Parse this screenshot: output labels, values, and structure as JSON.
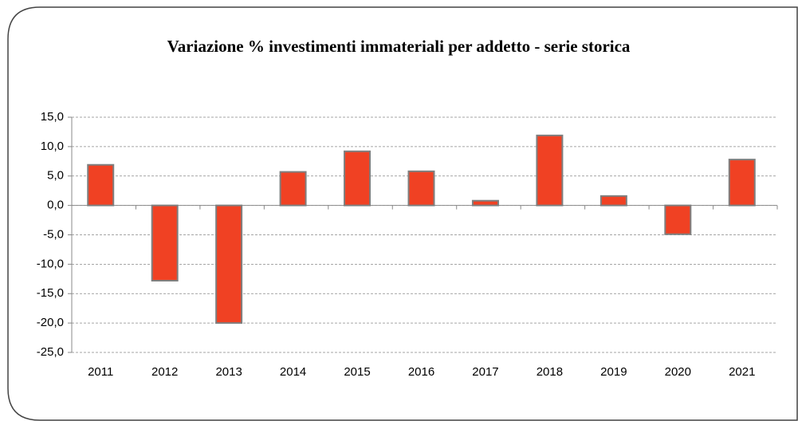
{
  "chart_data": {
    "type": "bar",
    "title": "Variazione % investimenti immateriali per addetto - serie storica",
    "categories": [
      "2011",
      "2012",
      "2013",
      "2014",
      "2015",
      "2016",
      "2017",
      "2018",
      "2019",
      "2020",
      "2021"
    ],
    "values": [
      6.9,
      -12.8,
      -20.0,
      5.7,
      9.2,
      5.8,
      0.8,
      11.9,
      1.6,
      -4.9,
      7.8
    ],
    "color": "#f04123",
    "ylim": [
      -25,
      15
    ],
    "yticks": [
      {
        "value": -25,
        "label": "-25,0"
      },
      {
        "value": -20,
        "label": "-20,0"
      },
      {
        "value": -15,
        "label": "-15,0"
      },
      {
        "value": -10,
        "label": "-10,0"
      },
      {
        "value": -5,
        "label": "-5,0"
      },
      {
        "value": 0,
        "label": "0,0"
      },
      {
        "value": 5,
        "label": "5,0"
      },
      {
        "value": 10,
        "label": "10,0"
      },
      {
        "value": 15,
        "label": "15,0"
      }
    ],
    "grid": true
  }
}
